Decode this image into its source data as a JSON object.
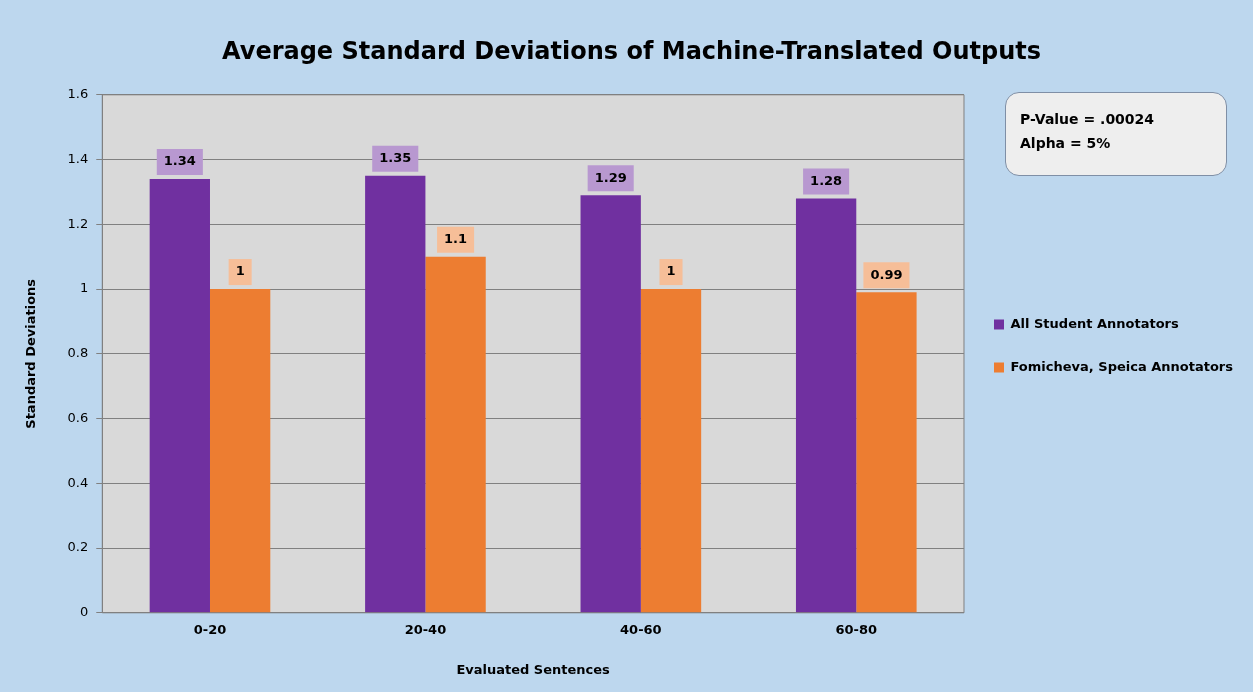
{
  "chart_data": {
    "type": "bar",
    "title": "Average Standard Deviations of Machine-Translated Outputs",
    "xlabel": "Evaluated Sentences",
    "ylabel": "Standard Deviations",
    "categories": [
      "0-20",
      "20-40",
      "40-60",
      "60-80"
    ],
    "series": [
      {
        "name": "All Student Annotators",
        "color": "#7030a0",
        "values": [
          1.34,
          1.35,
          1.29,
          1.28
        ]
      },
      {
        "name": "Fomicheva, Speica Annotators",
        "color": "#ed7d31",
        "values": [
          1,
          1.1,
          1,
          0.99
        ]
      }
    ],
    "ylim": [
      0,
      1.6
    ],
    "yticks": [
      0,
      0.2,
      0.4,
      0.6,
      0.8,
      1,
      1.2,
      1.4,
      1.6
    ],
    "grid": "y",
    "legend": "right",
    "data_labels": true,
    "annotations": [
      "P-Value = .00024",
      "Alpha = 5%"
    ]
  }
}
